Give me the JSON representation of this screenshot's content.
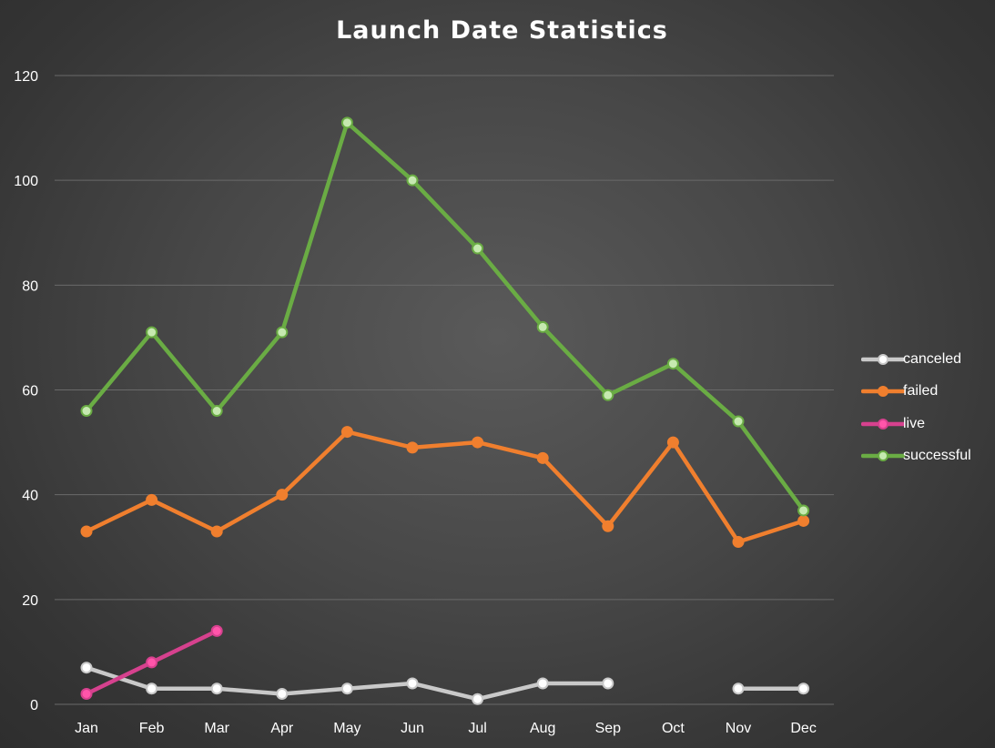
{
  "chart_data": {
    "type": "line",
    "title": "Launch Date Statistics",
    "xlabel": "",
    "ylabel": "",
    "categories": [
      "Jan",
      "Feb",
      "Mar",
      "Apr",
      "May",
      "Jun",
      "Jul",
      "Aug",
      "Sep",
      "Oct",
      "Nov",
      "Dec"
    ],
    "ylim": [
      0,
      120
    ],
    "yticks": [
      0,
      20,
      40,
      60,
      80,
      100,
      120
    ],
    "grid": true,
    "legend_position": "right",
    "series": [
      {
        "name": "canceled",
        "color": "#c9c9c9",
        "marker_fill": "#ffffff",
        "values": [
          7,
          3,
          3,
          2,
          3,
          4,
          1,
          4,
          4,
          null,
          3,
          3
        ]
      },
      {
        "name": "failed",
        "color": "#f07f2e",
        "marker_fill": "#f07f2e",
        "values": [
          33,
          39,
          33,
          40,
          52,
          49,
          50,
          47,
          34,
          50,
          31,
          35
        ]
      },
      {
        "name": "live",
        "color": "#d6418e",
        "marker_fill": "#ff55aa",
        "values": [
          2,
          8,
          14,
          null,
          null,
          null,
          null,
          null,
          null,
          null,
          null,
          null
        ]
      },
      {
        "name": "successful",
        "color": "#6aac44",
        "marker_fill": "#c6e9b0",
        "values": [
          56,
          71,
          56,
          71,
          111,
          100,
          87,
          72,
          59,
          65,
          54,
          37
        ]
      }
    ]
  }
}
